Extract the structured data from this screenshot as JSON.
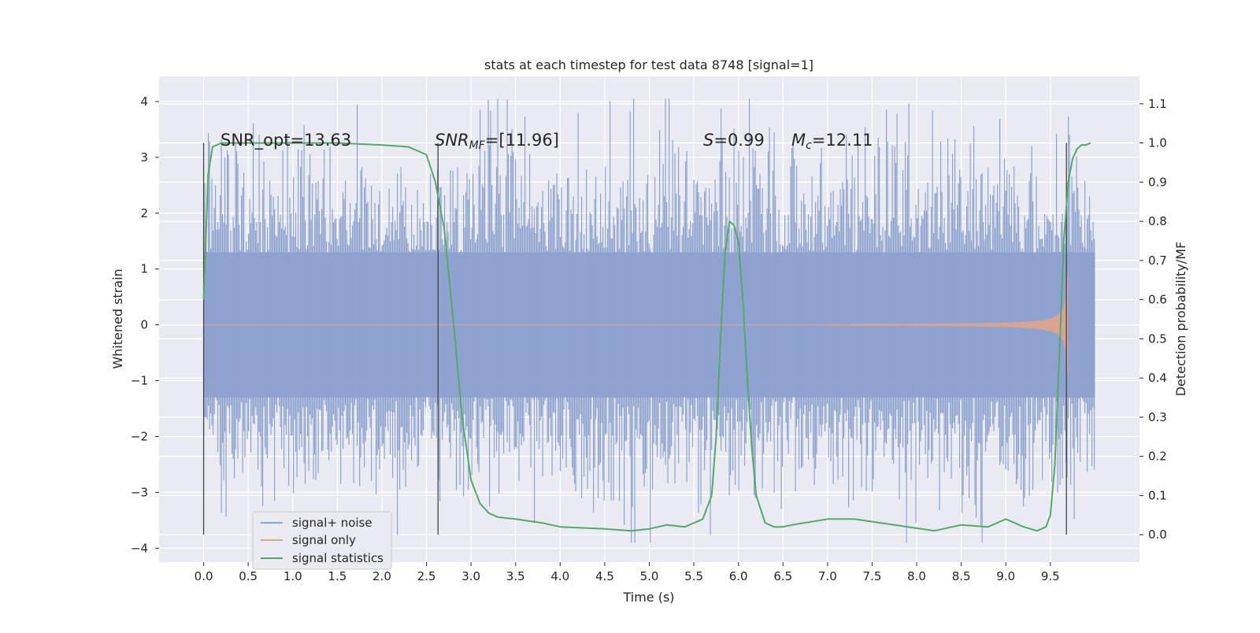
{
  "chart_data": {
    "type": "line",
    "title": "stats at each timestep for test data 8748 [signal=1]",
    "xlabel": "Time (s)",
    "ylabel": "Whitened strain",
    "y2label": "Detection probability/MF",
    "xlim": [
      -0.5,
      10.5
    ],
    "ylim": [
      -4.25,
      4.45
    ],
    "y2lim": [
      -0.07,
      1.17
    ],
    "x_ticks": [
      "0.0",
      "0.5",
      "1.0",
      "1.5",
      "2.0",
      "2.5",
      "3.0",
      "3.5",
      "4.0",
      "4.5",
      "5.0",
      "5.5",
      "6.0",
      "6.5",
      "7.0",
      "7.5",
      "8.0",
      "8.5",
      "9.0",
      "9.5"
    ],
    "y_ticks": [
      "4",
      "3",
      "2",
      "1",
      "0",
      "−1",
      "−2",
      "−3",
      "−4"
    ],
    "y2_ticks": [
      "1.1",
      "1.0",
      "0.9",
      "0.8",
      "0.7",
      "0.6",
      "0.5",
      "0.4",
      "0.3",
      "0.2",
      "0.1",
      "0.0"
    ],
    "grid": true,
    "legend_position": "lower-left",
    "annotations": {
      "snr_opt": "SNR_opt=13.63",
      "snr_mf_pre": "SNR",
      "snr_mf_sub": "MF",
      "snr_mf_post": "=[11.96]",
      "s_sym": "S",
      "s_val": "=0.99",
      "mc_sym": "M",
      "mc_sub": "c",
      "mc_val": "=12.11"
    },
    "markers_x": [
      0.0,
      2.63,
      9.68
    ],
    "series": [
      {
        "name": "signal+ noise",
        "color": "#8ea2cf",
        "x_range": [
          0.0,
          10.0
        ],
        "envelope": [
          1.3,
          -1.3
        ],
        "peak_range": [
          -3.9,
          4.05
        ]
      },
      {
        "name": "signal only",
        "color": "#dea48d",
        "x_range": [
          0.0,
          9.7
        ],
        "amplitude_end": 1.0
      },
      {
        "name": "signal statistics",
        "color": "#55a868",
        "x": [
          0.0,
          0.05,
          0.1,
          0.2,
          0.5,
          1.0,
          1.5,
          2.0,
          2.3,
          2.5,
          2.6,
          2.7,
          2.8,
          2.9,
          3.0,
          3.1,
          3.2,
          3.3,
          3.5,
          3.8,
          4.0,
          4.5,
          4.8,
          5.0,
          5.2,
          5.4,
          5.6,
          5.7,
          5.75,
          5.8,
          5.85,
          5.9,
          5.95,
          6.0,
          6.05,
          6.1,
          6.15,
          6.2,
          6.3,
          6.4,
          6.5,
          6.6,
          7.0,
          7.3,
          7.6,
          7.9,
          8.2,
          8.5,
          8.8,
          9.0,
          9.2,
          9.35,
          9.45,
          9.5,
          9.55,
          9.6,
          9.65,
          9.7,
          9.75,
          9.8,
          9.85,
          9.9,
          9.95
        ],
        "values": [
          0.6,
          0.92,
          0.99,
          1.0,
          1.0,
          1.0,
          1.0,
          0.995,
          0.99,
          0.97,
          0.9,
          0.78,
          0.55,
          0.3,
          0.14,
          0.08,
          0.055,
          0.045,
          0.04,
          0.03,
          0.02,
          0.015,
          0.01,
          0.015,
          0.025,
          0.02,
          0.04,
          0.1,
          0.25,
          0.5,
          0.72,
          0.8,
          0.79,
          0.75,
          0.6,
          0.4,
          0.22,
          0.1,
          0.03,
          0.02,
          0.02,
          0.025,
          0.04,
          0.04,
          0.03,
          0.02,
          0.01,
          0.025,
          0.02,
          0.04,
          0.02,
          0.01,
          0.02,
          0.05,
          0.18,
          0.45,
          0.75,
          0.9,
          0.96,
          0.985,
          0.995,
          0.995,
          1.0
        ]
      }
    ]
  }
}
